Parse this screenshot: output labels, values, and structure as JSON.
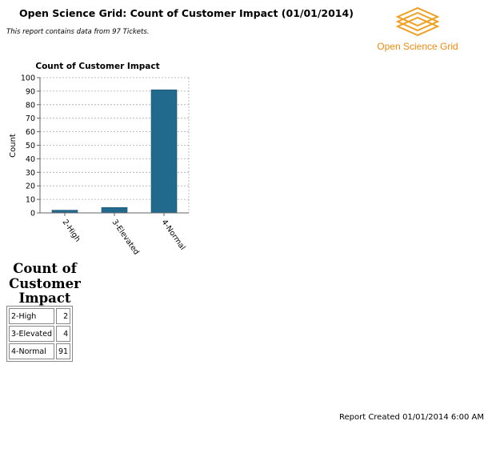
{
  "header": {
    "title": "Open Science Grid: Count of Customer Impact (01/01/2014)",
    "subtitle": "This report contains data from 97 Tickets."
  },
  "logo": {
    "text": "Open Science Grid",
    "icon": "osg-stacked-diamonds-logo",
    "color": "#f0a020"
  },
  "chart_data": {
    "type": "bar",
    "title": "Count of Customer Impact",
    "xlabel": "",
    "ylabel": "Count",
    "categories": [
      "2-High",
      "3-Elevated",
      "4-Normal"
    ],
    "values": [
      2,
      4,
      91
    ],
    "ylim": [
      0,
      100
    ],
    "yticks": [
      0,
      10,
      20,
      30,
      40,
      50,
      60,
      70,
      80,
      90,
      100
    ],
    "grid": true,
    "bar_color": "#216a8e"
  },
  "summary": {
    "title_lines": [
      "Count of",
      "Customer",
      "Impact"
    ],
    "rows": [
      {
        "label": "2-High",
        "count": "2"
      },
      {
        "label": "3-Elevated",
        "count": "4"
      },
      {
        "label": "4-Normal",
        "count": "91"
      }
    ]
  },
  "footer": {
    "text": "Report Created 01/01/2014 6:00 AM"
  }
}
